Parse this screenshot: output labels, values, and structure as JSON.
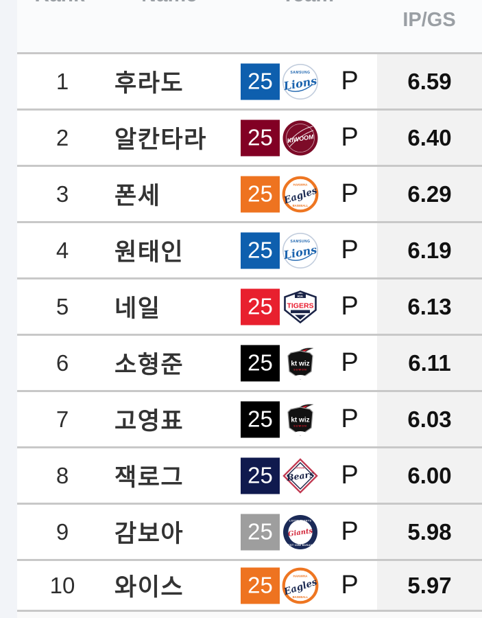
{
  "header": {
    "rank_label": "Rank",
    "name_label": "Name",
    "team_label": "Team",
    "stat_label": "IP/GS"
  },
  "colors": {
    "divider": "#c8c8c8",
    "header_text": "#9a9fa4",
    "row_bg": "#ffffff",
    "value_column_bg": "#f2f2f2",
    "left_gutter_bg": "#f2f4f8",
    "header_bg": "#fafbfc"
  },
  "teams": {
    "samsung-lions": {
      "label": "Lions",
      "sub_top": "SAMSUNG",
      "color": "#1b63ae"
    },
    "kiwoom-heroes": {
      "label": "KIWOOM",
      "sub_top": "KIWOOM HEROES",
      "color": "#7d0b28"
    },
    "hanwha-eagles": {
      "label": "Eagles",
      "sub_top": "HANWHA",
      "sub_bottom": "BASEBALL",
      "color": "#ee7622"
    },
    "kia-tigers": {
      "label": "TIGERS",
      "sub_top": "KIA",
      "color": "#e8192c"
    },
    "kt-wiz": {
      "label": "kt wiz",
      "sub_bottom": "SUWON",
      "color": "#121212"
    },
    "doosan-bears": {
      "label": "Bears",
      "sub_top": "DOOSAN",
      "color": "#1b2447"
    },
    "lotte-giants": {
      "label": "Giants",
      "sub_top": "LOTTE GIANTS",
      "sub_bottom": "EST 1982 BUSAN",
      "color": "#d2273a"
    }
  },
  "rows": [
    {
      "rank": "1",
      "name": "후라도",
      "number": "25",
      "number_bg": "#0e5fae",
      "team": "samsung-lions",
      "position": "P",
      "value": "6.59"
    },
    {
      "rank": "2",
      "name": "알칸타라",
      "number": "25",
      "number_bg": "#820024",
      "team": "kiwoom-heroes",
      "position": "P",
      "value": "6.40"
    },
    {
      "rank": "3",
      "name": "폰세",
      "number": "25",
      "number_bg": "#ee7320",
      "team": "hanwha-eagles",
      "position": "P",
      "value": "6.29"
    },
    {
      "rank": "4",
      "name": "원태인",
      "number": "25",
      "number_bg": "#0e5fae",
      "team": "samsung-lions",
      "position": "P",
      "value": "6.19"
    },
    {
      "rank": "5",
      "name": "네일",
      "number": "25",
      "number_bg": "#e8202e",
      "team": "kia-tigers",
      "position": "P",
      "value": "6.13"
    },
    {
      "rank": "6",
      "name": "소형준",
      "number": "25",
      "number_bg": "#000000",
      "team": "kt-wiz",
      "position": "P",
      "value": "6.11"
    },
    {
      "rank": "7",
      "name": "고영표",
      "number": "25",
      "number_bg": "#000000",
      "team": "kt-wiz",
      "position": "P",
      "value": "6.03"
    },
    {
      "rank": "8",
      "name": "잭로그",
      "number": "25",
      "number_bg": "#101a4e",
      "team": "doosan-bears",
      "position": "P",
      "value": "6.00"
    },
    {
      "rank": "9",
      "name": "감보아",
      "number": "25",
      "number_bg": "#9e9e9e",
      "team": "lotte-giants",
      "position": "P",
      "value": "5.98"
    },
    {
      "rank": "10",
      "name": "와이스",
      "number": "25",
      "number_bg": "#ee7320",
      "team": "hanwha-eagles",
      "position": "P",
      "value": "5.97"
    }
  ]
}
